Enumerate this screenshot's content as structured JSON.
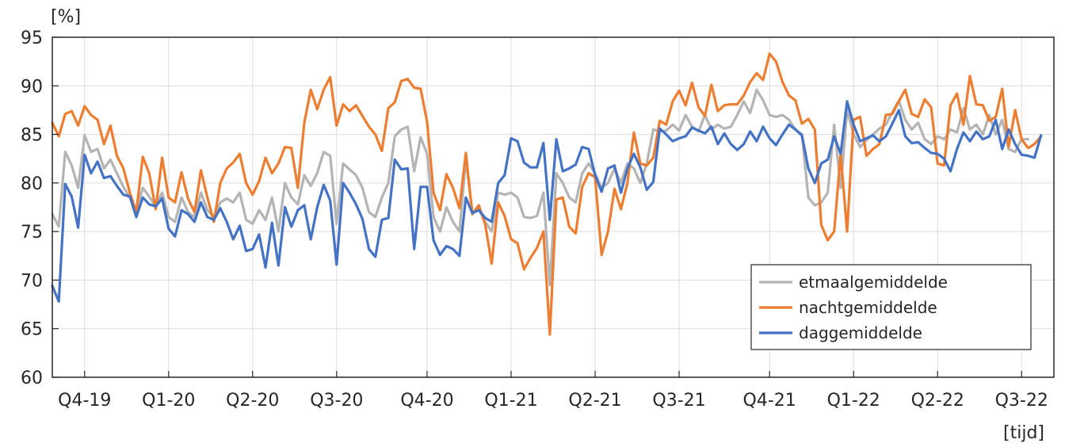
{
  "chart_data": {
    "type": "line",
    "ylabel": "[%]",
    "xlabel": "[tijd]",
    "ylim": [
      60,
      95
    ],
    "yticks": [
      60,
      65,
      70,
      75,
      80,
      85,
      90,
      95
    ],
    "xlim": [
      0,
      155
    ],
    "xticks": [
      {
        "label": "Q4-19",
        "x": 5
      },
      {
        "label": "Q1-20",
        "x": 18
      },
      {
        "label": "Q2-20",
        "x": 31
      },
      {
        "label": "Q3-20",
        "x": 44
      },
      {
        "label": "Q4-20",
        "x": 58
      },
      {
        "label": "Q1-21",
        "x": 71
      },
      {
        "label": "Q2-21",
        "x": 84
      },
      {
        "label": "Q3-21",
        "x": 97
      },
      {
        "label": "Q4-21",
        "x": 111
      },
      {
        "label": "Q1-22",
        "x": 124
      },
      {
        "label": "Q2-22",
        "x": 137
      },
      {
        "label": "Q3-22",
        "x": 150
      }
    ],
    "grid": true,
    "legend_position": "bottom-right",
    "series": [
      {
        "name": "etmaalgemiddelde",
        "color": "#b4b4b4",
        "values": [
          76.8,
          75.5,
          83.2,
          81.8,
          79.5,
          84.9,
          83.2,
          83.5,
          81.5,
          82.4,
          81.0,
          79.6,
          78.5,
          77.2,
          79.5,
          78.6,
          77.6,
          79.0,
          76.5,
          76.0,
          78.5,
          77.0,
          76.5,
          79.0,
          77.2,
          76.5,
          78.0,
          78.4,
          78.0,
          79.0,
          76.2,
          75.8,
          77.2,
          76.2,
          78.5,
          75.0,
          80.0,
          78.5,
          77.8,
          80.8,
          79.7,
          81.0,
          83.2,
          82.8,
          75.8,
          82.0,
          81.4,
          80.8,
          79.5,
          77.0,
          76.5,
          78.5,
          80.0,
          84.8,
          85.5,
          85.8,
          81.2,
          84.7,
          83.0,
          76.5,
          75.0,
          77.5,
          76.0,
          75.0,
          82.4,
          77.0,
          77.3,
          76.0,
          75.0,
          79.0,
          78.8,
          79.0,
          78.5,
          76.5,
          76.4,
          76.6,
          79.0,
          69.5,
          81.0,
          80.0,
          78.5,
          78.0,
          81.0,
          82.0,
          81.0,
          79.5,
          80.0,
          81.5,
          80.0,
          82.0,
          81.5,
          80.0,
          82.0,
          85.5,
          85.3,
          85.4,
          86.0,
          85.4,
          87.0,
          85.8,
          85.3,
          87.0,
          85.5,
          86.0,
          85.6,
          85.8,
          87.0,
          88.4,
          87.2,
          89.6,
          88.5,
          87.0,
          86.8,
          87.0,
          86.5,
          85.5,
          85.0,
          78.5,
          77.7,
          78.0,
          79.0,
          86.0,
          79.5,
          87.5,
          85.0,
          83.7,
          84.4,
          85.0,
          85.6,
          86.0,
          87.3,
          88.5,
          86.5,
          85.5,
          86.2,
          84.5,
          84.0,
          84.8,
          84.5,
          85.5,
          85.2,
          87.7,
          85.5,
          86.0,
          85.0,
          87.0,
          85.0,
          86.5,
          83.5,
          83.2,
          84.5,
          84.5
        ]
      },
      {
        "name": "nachtgemiddelde",
        "color": "#ed7d31",
        "values": [
          86.2,
          84.8,
          87.1,
          87.4,
          85.9,
          87.9,
          87.0,
          86.5,
          84.0,
          85.9,
          82.8,
          81.5,
          79.0,
          77.0,
          82.7,
          81.0,
          77.3,
          82.6,
          78.5,
          78.0,
          81.1,
          78.4,
          77.0,
          81.3,
          78.5,
          76.0,
          80.0,
          81.5,
          82.1,
          83.0,
          80.0,
          78.8,
          80.2,
          82.6,
          81.0,
          82.0,
          83.7,
          83.6,
          79.5,
          86.2,
          89.6,
          87.6,
          89.6,
          90.9,
          85.9,
          88.1,
          87.4,
          88.0,
          86.9,
          85.8,
          85.0,
          83.3,
          87.7,
          88.3,
          90.5,
          90.7,
          89.8,
          89.7,
          86.3,
          79.0,
          77.2,
          80.9,
          79.5,
          77.4,
          83.1,
          76.8,
          77.7,
          75.7,
          71.7,
          78.0,
          76.6,
          74.2,
          73.8,
          71.1,
          72.3,
          73.3,
          75.0,
          64.4,
          78.3,
          78.5,
          75.5,
          74.8,
          79.6,
          81.0,
          80.6,
          72.6,
          75.0,
          79.4,
          77.3,
          80.0,
          85.2,
          82.0,
          81.8,
          82.6,
          86.4,
          86.0,
          88.4,
          89.5,
          88.0,
          90.3,
          87.8,
          86.9,
          90.1,
          87.4,
          88.0,
          88.1,
          88.1,
          89.0,
          90.4,
          91.3,
          90.6,
          93.3,
          92.5,
          90.4,
          89.0,
          88.5,
          86.1,
          86.6,
          85.5,
          75.7,
          74.1,
          75.0,
          83.0,
          75.0,
          86.5,
          86.8,
          82.8,
          83.5,
          84.0,
          87.0,
          87.1,
          88.4,
          89.6,
          87.1,
          86.8,
          88.6,
          87.8,
          82.0,
          81.8,
          88.0,
          89.2,
          86.0,
          91.0,
          88.1,
          88.0,
          86.4,
          86.8,
          89.7,
          83.7,
          87.5,
          84.5,
          83.6,
          84.0,
          84.8
        ]
      },
      {
        "name": "daggemiddelde",
        "color": "#4472c4",
        "values": [
          69.4,
          67.8,
          79.9,
          78.6,
          75.4,
          82.9,
          81.0,
          82.2,
          80.5,
          80.7,
          79.7,
          78.8,
          78.6,
          76.5,
          78.5,
          77.8,
          77.6,
          78.4,
          75.3,
          74.5,
          77.2,
          76.8,
          76.0,
          78.0,
          76.5,
          76.2,
          77.4,
          76.0,
          74.2,
          75.6,
          73.0,
          73.2,
          74.7,
          71.3,
          75.9,
          71.5,
          77.5,
          75.5,
          77.2,
          77.7,
          74.2,
          77.5,
          79.8,
          78.2,
          71.6,
          80.0,
          79.0,
          77.8,
          76.3,
          73.2,
          72.4,
          76.2,
          76.4,
          82.4,
          81.4,
          81.5,
          73.2,
          79.6,
          79.6,
          74.1,
          72.6,
          73.5,
          73.2,
          72.5,
          78.5,
          76.9,
          77.2,
          76.4,
          76.0,
          80.0,
          80.8,
          84.6,
          84.3,
          82.1,
          81.6,
          81.6,
          84.1,
          76.2,
          84.5,
          81.2,
          81.5,
          81.9,
          83.7,
          83.5,
          80.8,
          79.1,
          81.5,
          81.8,
          79.0,
          81.5,
          83.0,
          81.6,
          79.3,
          80.1,
          85.6,
          85.0,
          84.3,
          84.6,
          84.8,
          85.7,
          85.4,
          85.1,
          85.8,
          84.0,
          85.1,
          84.0,
          83.4,
          84.0,
          85.3,
          84.3,
          85.8,
          84.6,
          83.9,
          85.0,
          86.0,
          85.5,
          84.9,
          81.5,
          80.0,
          82.0,
          82.4,
          84.8,
          83.0,
          88.4,
          86.0,
          84.3,
          84.6,
          84.9,
          84.3,
          84.8,
          86.1,
          87.5,
          84.8,
          84.1,
          84.2,
          83.6,
          83.1,
          83.0,
          82.5,
          81.2,
          83.5,
          85.2,
          84.3,
          85.3,
          84.5,
          84.8,
          86.5,
          83.5,
          85.5,
          84.0,
          82.9,
          82.8,
          82.6,
          84.9
        ]
      }
    ]
  }
}
